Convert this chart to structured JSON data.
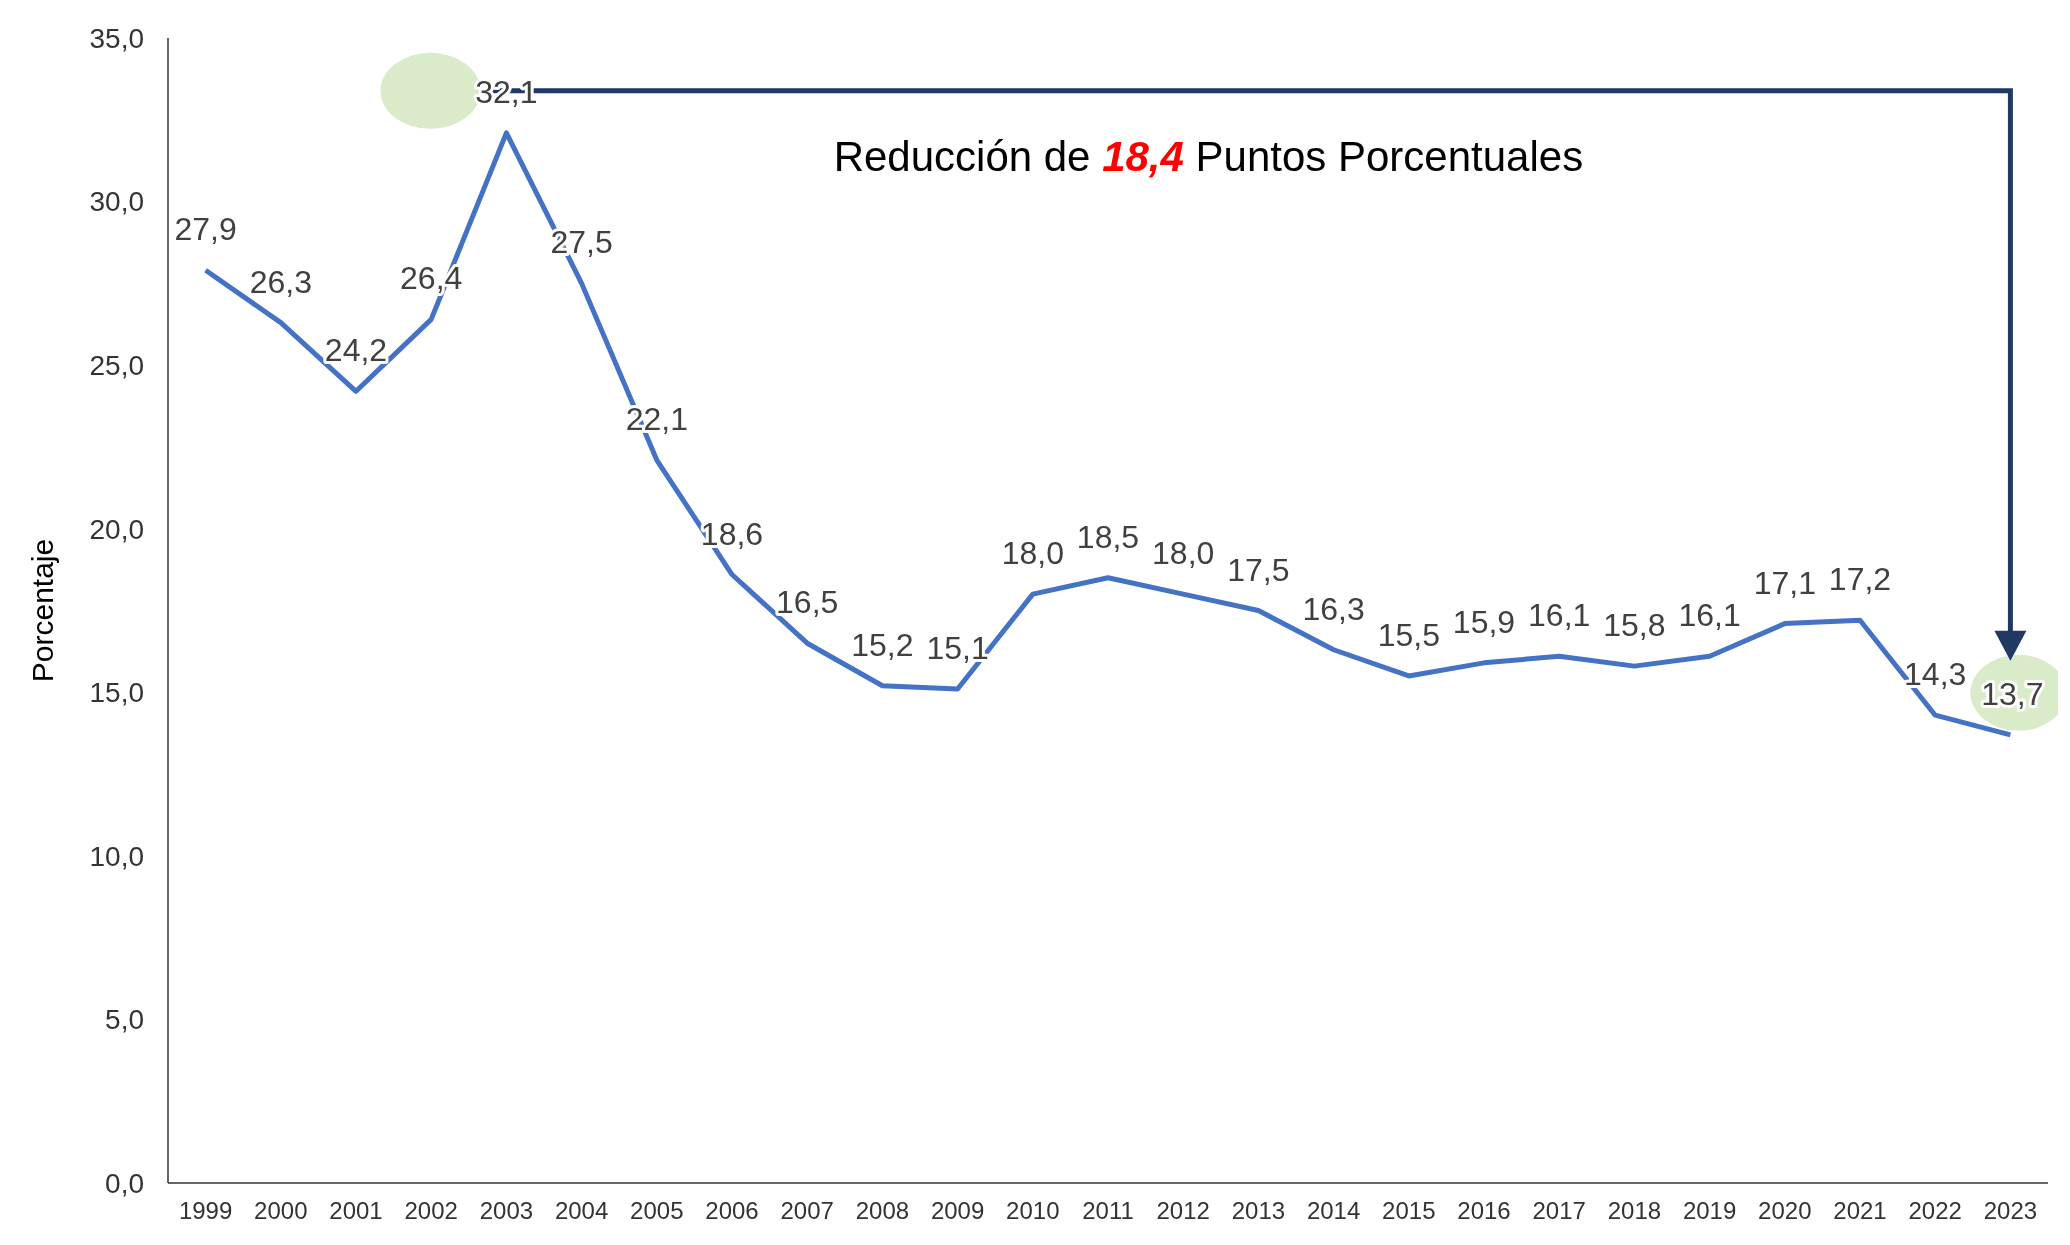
{
  "chart_data": {
    "type": "line",
    "ylabel": "Porcentaje",
    "categories": [
      "1999",
      "2000",
      "2001",
      "2002",
      "2003",
      "2004",
      "2005",
      "2006",
      "2007",
      "2008",
      "2009",
      "2010",
      "2011",
      "2012",
      "2013",
      "2014",
      "2015",
      "2016",
      "2017",
      "2018",
      "2019",
      "2020",
      "2021",
      "2022",
      "2023"
    ],
    "values": [
      27.9,
      26.3,
      24.2,
      26.4,
      32.1,
      27.5,
      22.1,
      18.6,
      16.5,
      15.2,
      15.1,
      18.0,
      18.5,
      18.0,
      17.5,
      16.3,
      15.5,
      15.9,
      16.1,
      15.8,
      16.1,
      17.1,
      17.2,
      14.3,
      13.7
    ],
    "value_labels": [
      "27,9",
      "26,3",
      "24,2",
      "26,4",
      "32,1",
      "27,5",
      "22,1",
      "18,6",
      "16,5",
      "15,2",
      "15,1",
      "18,0",
      "18,5",
      "18,0",
      "17,5",
      "16,3",
      "15,5",
      "15,9",
      "16,1",
      "15,8",
      "16,1",
      "17,1",
      "17,2",
      "14,3",
      "13,7"
    ],
    "color": "#4472c4",
    "ylim": [
      0,
      35
    ],
    "yticks": [
      {
        "value": 0,
        "label": "0,0"
      },
      {
        "value": 5,
        "label": "5,0"
      },
      {
        "value": 10,
        "label": "10,0"
      },
      {
        "value": 15,
        "label": "15,0"
      },
      {
        "value": 20,
        "label": "20,0"
      },
      {
        "value": 25,
        "label": "25,0"
      },
      {
        "value": 30,
        "label": "30,0"
      },
      {
        "value": 35,
        "label": "35,0"
      }
    ],
    "annotations": [
      "Reducción de 18,4 Puntos Porcentuales"
    ],
    "grid": false,
    "marker": "none",
    "line_style": "solid"
  }
}
